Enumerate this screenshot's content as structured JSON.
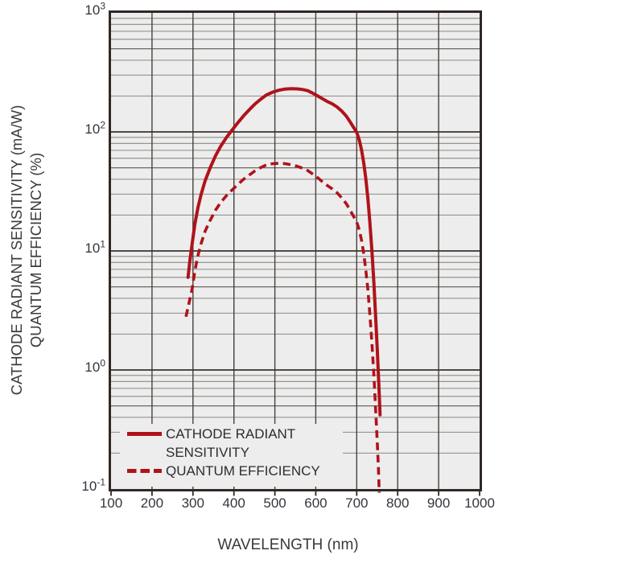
{
  "colors": {
    "curve_red": "#b0121a",
    "plot_bg": "#ededed",
    "border": "#302824",
    "grid_decade": "#37332f",
    "grid_minor": "#8d8984",
    "grid_five": "#6b6763",
    "grid_vertical": "#45413d",
    "text": "#36343c"
  },
  "legend": {
    "series1_line1": "CATHODE RADIANT",
    "series1_line2": "SENSITIVITY",
    "series2": "QUANTUM EFFICIENCY"
  },
  "chart_data": {
    "type": "line",
    "title": "",
    "xlabel": "WAVELENGTH (nm)",
    "ylabel_line1": "CATHODE RADIANT SENSITIVITY (mA/W)",
    "ylabel_line2": "QUANTUM EFFICIENCY (%)",
    "x_axis": "linear wavelength, nm",
    "y_axis": "logarithmic, 4 decades",
    "x_range": [
      100,
      1000
    ],
    "y_log_range": [
      -1,
      3
    ],
    "x_tick_values": [
      100,
      200,
      300,
      400,
      500,
      600,
      700,
      800,
      900,
      1000
    ],
    "x_tick_labels": [
      "100",
      "200",
      "300",
      "400",
      "500",
      "600",
      "700",
      "800",
      "900",
      "1000"
    ],
    "y_tick_base": "10",
    "y_tick_exponents": [
      "3",
      "2",
      "1",
      "0",
      "-1"
    ],
    "grid": "major decade lines + log minor lines (2-9) horizontal; vertical line every 100 nm",
    "legend_position": "inside bottom-left",
    "series": [
      {
        "name": "CATHODE RADIANT SENSITIVITY",
        "unit": "mA/W",
        "style": "solid",
        "color": "#b0121a",
        "points": [
          [
            288,
            6
          ],
          [
            292,
            8
          ],
          [
            298,
            11.5
          ],
          [
            305,
            17
          ],
          [
            312,
            23
          ],
          [
            320,
            30
          ],
          [
            330,
            39
          ],
          [
            342,
            50
          ],
          [
            355,
            63
          ],
          [
            368,
            76
          ],
          [
            382,
            90
          ],
          [
            396,
            104
          ],
          [
            410,
            120
          ],
          [
            424,
            137
          ],
          [
            438,
            154
          ],
          [
            452,
            172
          ],
          [
            466,
            189
          ],
          [
            480,
            205
          ],
          [
            495,
            216
          ],
          [
            510,
            224
          ],
          [
            525,
            229
          ],
          [
            540,
            231
          ],
          [
            555,
            230
          ],
          [
            568,
            227
          ],
          [
            580,
            222
          ],
          [
            592,
            212
          ],
          [
            604,
            201
          ],
          [
            616,
            190
          ],
          [
            628,
            180
          ],
          [
            640,
            172
          ],
          [
            652,
            162
          ],
          [
            664,
            149
          ],
          [
            675,
            135
          ],
          [
            684,
            121
          ],
          [
            693,
            108
          ],
          [
            700,
            99
          ],
          [
            706,
            86
          ],
          [
            712,
            70
          ],
          [
            717,
            55
          ],
          [
            722,
            41
          ],
          [
            727,
            28
          ],
          [
            732,
            17.5
          ],
          [
            737,
            10
          ],
          [
            742,
            5.3
          ],
          [
            746,
            2.9
          ],
          [
            750,
            1.5
          ],
          [
            754,
            0.75
          ],
          [
            757,
            0.42
          ]
        ]
      },
      {
        "name": "QUANTUM EFFICIENCY",
        "unit": "%",
        "style": "dashed",
        "color": "#b0121a",
        "points": [
          [
            283,
            2.8
          ],
          [
            290,
            3.6
          ],
          [
            298,
            4.8
          ],
          [
            305,
            6.9
          ],
          [
            312,
            9.1
          ],
          [
            320,
            11.6
          ],
          [
            330,
            14.7
          ],
          [
            342,
            18.1
          ],
          [
            355,
            22.0
          ],
          [
            368,
            25.6
          ],
          [
            382,
            29.2
          ],
          [
            396,
            32.6
          ],
          [
            410,
            36.3
          ],
          [
            424,
            40.1
          ],
          [
            438,
            43.6
          ],
          [
            452,
            47.2
          ],
          [
            466,
            50.3
          ],
          [
            480,
            53.0
          ],
          [
            495,
            54.1
          ],
          [
            510,
            54.5
          ],
          [
            525,
            54.1
          ],
          [
            540,
            53.0
          ],
          [
            555,
            51.4
          ],
          [
            568,
            49.5
          ],
          [
            580,
            47.4
          ],
          [
            592,
            44.4
          ],
          [
            604,
            41.3
          ],
          [
            616,
            38.2
          ],
          [
            628,
            35.5
          ],
          [
            640,
            33.3
          ],
          [
            652,
            30.8
          ],
          [
            664,
            27.8
          ],
          [
            675,
            24.8
          ],
          [
            684,
            21.9
          ],
          [
            693,
            19.3
          ],
          [
            700,
            17.5
          ],
          [
            706,
            15.1
          ],
          [
            712,
            12.2
          ],
          [
            717,
            9.5
          ],
          [
            722,
            7.0
          ],
          [
            727,
            4.8
          ],
          [
            732,
            2.96
          ],
          [
            737,
            1.68
          ],
          [
            742,
            0.89
          ],
          [
            746,
            0.48
          ],
          [
            750,
            0.25
          ],
          [
            753,
            0.148
          ],
          [
            755,
            0.093
          ]
        ]
      }
    ]
  }
}
